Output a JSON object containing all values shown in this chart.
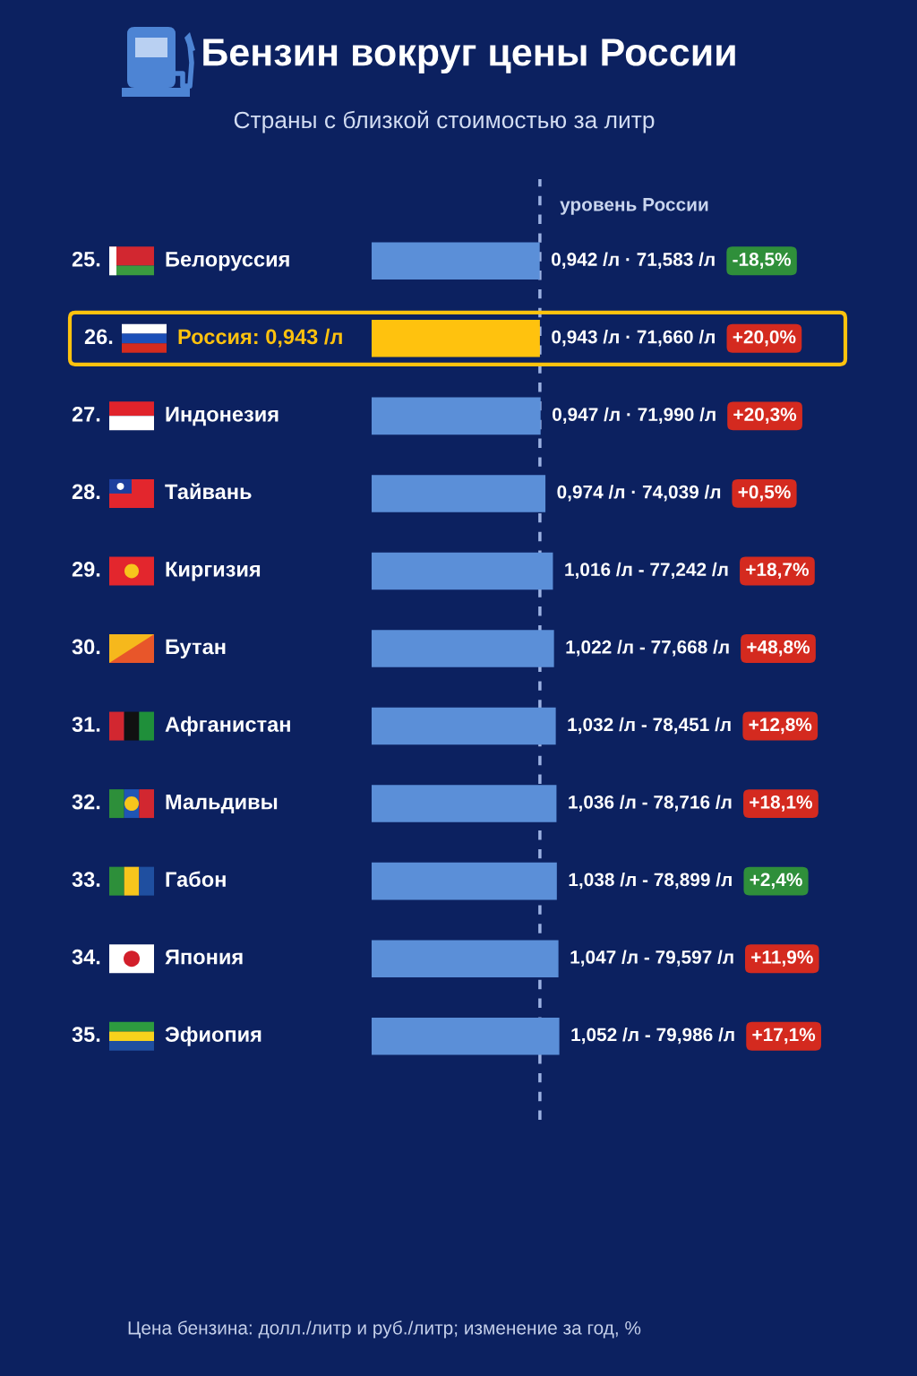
{
  "chart_data": {
    "type": "bar",
    "orientation": "horizontal",
    "title": "Бензин вокруг цены России",
    "subtitle": "Страны с близкой стоимостью за литр",
    "categories": [
      "25. Белоруссия",
      "26. Россия: 0,943 /л",
      "27. Индонезия",
      "28. Тайвань",
      "29. Киргизия",
      "30. Бутан",
      "31. Афганистан",
      "32. Мальдивы",
      "33. Габон",
      "34. Япония",
      "35. Эфиопия"
    ],
    "values": [
      0.942,
      0.943,
      0.947,
      0.974,
      1.016,
      1.022,
      1.032,
      1.036,
      1.038,
      1.047,
      1.052
    ],
    "colors": [
      "#5b8fd8",
      "#ffc20e",
      "#5b8fd8",
      "#5b8fd8",
      "#5b8fd8",
      "#5b8fd8",
      "#5b8fd8",
      "#5b8fd8",
      "#5b8fd8",
      "#5b8fd8",
      "#5b8fd8"
    ],
    "value_labels": [
      "0,942 /л · 71,583 /л",
      "0,943 /л · 71,660 /л",
      "0,947 /л · 71,990 /л",
      "0,974 /л · 74,039 /л",
      "1,016 /л - 77,242 /л",
      "1,022 /л - 77,668 /л",
      "1,032 /л - 78,451 /л",
      "1,036 /л - 78,716 /л",
      "1,038 /л - 78,899 /л",
      "1,047 /л - 79,597 /л",
      "1,052 /л - 79,986 /л"
    ],
    "ref_lines": [
      {
        "axis": "x",
        "value": 0.943,
        "label": "уровень России",
        "color": "#9db2e2",
        "line_style": "dashed"
      }
    ],
    "annotations": [
      "-18,5%",
      "+20,0%",
      "+20,3%",
      "+0,5%",
      "+18,7%",
      "+48,8%",
      "+12,8%",
      "+18,1%",
      "+2,4%",
      "+11,9%",
      "+17,1%",
      "Цена бензина: долл./литр и руб./литр; изменение за год, %"
    ],
    "tick_labels": "y"
  }
}
